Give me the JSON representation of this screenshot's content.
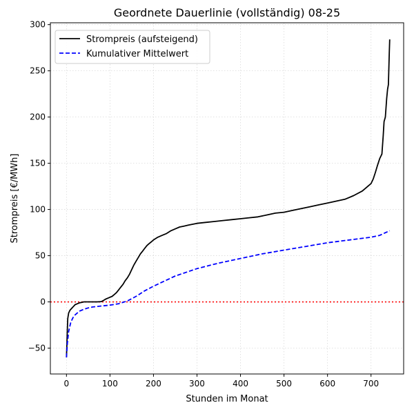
{
  "chart_data": {
    "type": "line",
    "title": "Geordnete Dauerlinie (vollständig) 08-25",
    "xlabel": "Stunden im Monat",
    "ylabel": "Strompreis [€/MWh]",
    "xlim": [
      -37,
      775
    ],
    "ylim": [
      -78,
      302
    ],
    "xticks": [
      0,
      100,
      200,
      300,
      400,
      500,
      600,
      700
    ],
    "yticks": [
      -50,
      0,
      50,
      100,
      150,
      200,
      250,
      300
    ],
    "grid": true,
    "legend_position": "top-left",
    "reference_line": {
      "y": 0,
      "color": "#ff0000",
      "style": "dotted"
    },
    "series": [
      {
        "name": "Strompreis (aufsteigend)",
        "color": "#000000",
        "style": "solid",
        "x": [
          0,
          1,
          2,
          3,
          5,
          8,
          12,
          16,
          20,
          25,
          30,
          35,
          40,
          45,
          50,
          60,
          70,
          80,
          85,
          90,
          95,
          100,
          105,
          110,
          115,
          120,
          125,
          130,
          135,
          140,
          145,
          150,
          155,
          160,
          165,
          170,
          175,
          180,
          185,
          190,
          195,
          200,
          210,
          220,
          230,
          240,
          250,
          260,
          270,
          280,
          290,
          300,
          320,
          340,
          360,
          380,
          400,
          420,
          440,
          460,
          480,
          500,
          520,
          540,
          560,
          580,
          600,
          620,
          640,
          660,
          680,
          690,
          700,
          705,
          710,
          715,
          720,
          725,
          728,
          730,
          733,
          736,
          738,
          740,
          742,
          743
        ],
        "values": [
          -60,
          -45,
          -30,
          -18,
          -12,
          -9,
          -7,
          -5,
          -3,
          -2,
          -1,
          -0.5,
          0,
          0,
          0,
          0,
          0,
          0.3,
          1.5,
          3,
          4,
          5,
          6,
          8,
          10,
          13,
          16,
          19,
          23,
          26,
          30,
          35,
          40,
          44,
          48,
          52,
          55,
          58,
          61,
          63,
          65,
          67,
          70,
          72,
          74,
          77,
          79,
          81,
          82,
          83,
          84,
          85,
          86,
          87,
          88,
          89,
          90,
          91,
          92,
          94,
          96,
          97,
          99,
          101,
          103,
          105,
          107,
          109,
          111,
          115,
          120,
          124,
          128,
          133,
          140,
          148,
          155,
          160,
          180,
          195,
          200,
          220,
          230,
          235,
          270,
          284
        ]
      },
      {
        "name": "Kumulativer Mittelwert",
        "color": "#0000ff",
        "style": "dashed",
        "x": [
          0,
          2,
          5,
          10,
          15,
          20,
          30,
          40,
          50,
          60,
          80,
          100,
          120,
          140,
          160,
          180,
          200,
          250,
          300,
          350,
          400,
          450,
          500,
          550,
          600,
          650,
          700,
          720,
          743
        ],
        "values": [
          -60,
          -45,
          -32,
          -22,
          -17,
          -14,
          -10,
          -8,
          -6.5,
          -5.5,
          -4.5,
          -3.5,
          -2,
          1,
          6,
          12,
          17,
          28,
          36,
          42,
          47,
          52,
          56,
          60,
          64,
          67,
          70,
          72,
          77
        ]
      }
    ]
  }
}
